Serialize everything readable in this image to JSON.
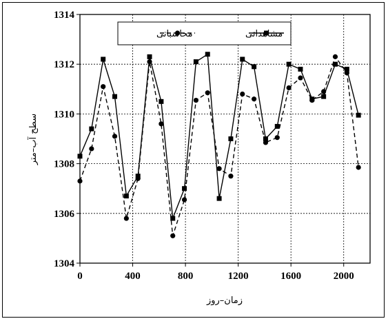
{
  "chart_data": {
    "type": "line",
    "title": "",
    "xlabel": "زمان–روز",
    "ylabel": "سطح آب–متر",
    "xlim": [
      0,
      2200
    ],
    "ylim": [
      1304,
      1314
    ],
    "xticks": [
      0,
      400,
      800,
      1200,
      1600,
      2000
    ],
    "yticks": [
      1304,
      1306,
      1308,
      1310,
      1312,
      1314
    ],
    "grid": true,
    "legend_position": "top-center",
    "series": [
      {
        "name": "مشاهداتی",
        "style": "solid",
        "marker": "square",
        "color": "#000000",
        "points": [
          [
            0,
            1308.3
          ],
          [
            88,
            1309.4
          ],
          [
            176,
            1312.2
          ],
          [
            264,
            1310.7
          ],
          [
            352,
            1306.7
          ],
          [
            440,
            1307.5
          ],
          [
            528,
            1312.3
          ],
          [
            616,
            1310.5
          ],
          [
            704,
            1305.8
          ],
          [
            792,
            1307.0
          ],
          [
            880,
            1312.1
          ],
          [
            968,
            1312.4
          ],
          [
            1056,
            1306.6
          ],
          [
            1144,
            1309.0
          ],
          [
            1232,
            1312.2
          ],
          [
            1320,
            1311.9
          ],
          [
            1408,
            1309.0
          ],
          [
            1496,
            1309.5
          ],
          [
            1584,
            1312.0
          ],
          [
            1672,
            1311.8
          ],
          [
            1760,
            1310.6
          ],
          [
            1848,
            1310.7
          ],
          [
            1936,
            1312.0
          ],
          [
            2024,
            1311.8
          ],
          [
            2112,
            1309.95
          ]
        ]
      },
      {
        "name": "محاسباتی",
        "style": "dashed",
        "marker": "circle",
        "color": "#000000",
        "points": [
          [
            0,
            1307.3
          ],
          [
            88,
            1308.6
          ],
          [
            176,
            1311.1
          ],
          [
            264,
            1309.1
          ],
          [
            352,
            1305.8
          ],
          [
            440,
            1307.4
          ],
          [
            528,
            1312.1
          ],
          [
            616,
            1309.6
          ],
          [
            704,
            1305.1
          ],
          [
            792,
            1306.55
          ],
          [
            880,
            1310.55
          ],
          [
            968,
            1310.85
          ],
          [
            1056,
            1307.8
          ],
          [
            1144,
            1307.5
          ],
          [
            1232,
            1310.8
          ],
          [
            1320,
            1310.6
          ],
          [
            1408,
            1308.85
          ],
          [
            1496,
            1309.05
          ],
          [
            1584,
            1311.05
          ],
          [
            1672,
            1311.45
          ],
          [
            1760,
            1310.55
          ],
          [
            1848,
            1310.9
          ],
          [
            1936,
            1312.3
          ],
          [
            2024,
            1311.65
          ],
          [
            2112,
            1307.85
          ]
        ]
      }
    ]
  }
}
